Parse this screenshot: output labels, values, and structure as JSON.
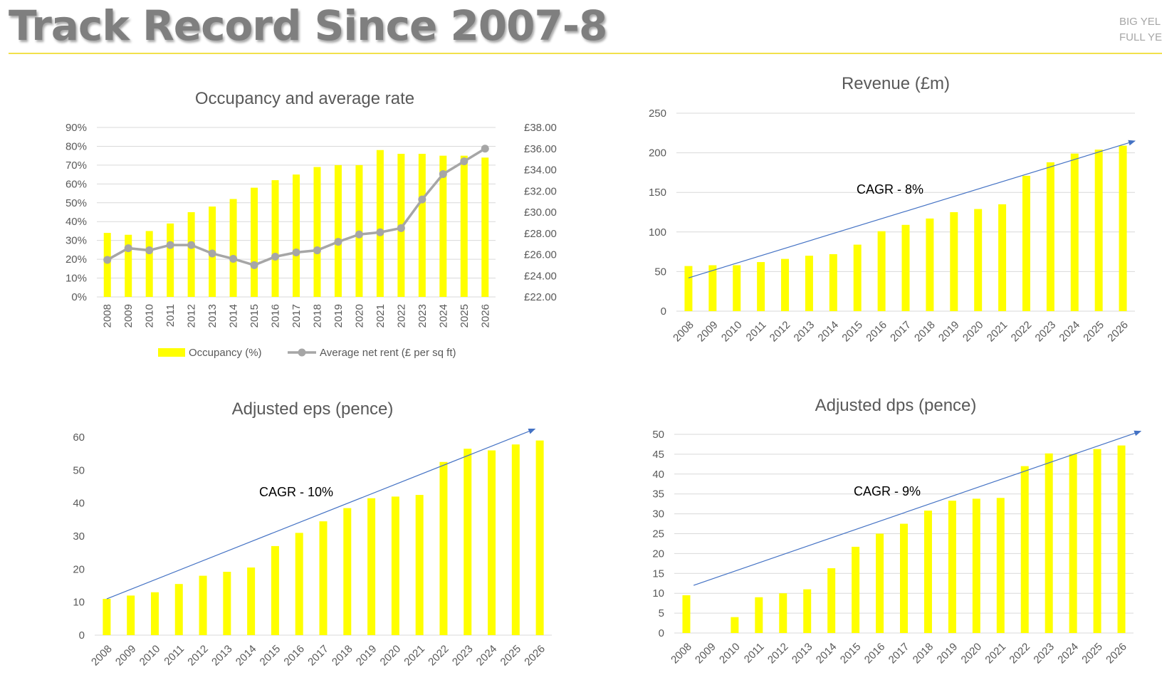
{
  "page": {
    "title": "Track Record Since 2007-8",
    "brand_line_1": "BIG YEL",
    "brand_line_2": "FULL YE"
  },
  "colors": {
    "bar": "#ffff00",
    "line": "#a6a6a6",
    "grid": "#d9d9d9",
    "arrow": "#4472c4",
    "title_rule": "#f2e14c"
  },
  "chart_data": [
    {
      "id": "occupancy",
      "type": "bar+line",
      "title": "Occupancy and average rate",
      "categories": [
        "2008",
        "2009",
        "2010",
        "2011",
        "2012",
        "2013",
        "2014",
        "2015",
        "2016",
        "2017",
        "2018",
        "2019",
        "2020",
        "2021",
        "2022",
        "2023",
        "2024",
        "2025",
        "2026"
      ],
      "series": [
        {
          "name": "Occupancy (%)",
          "type": "bar",
          "axis": "left",
          "values": [
            34,
            33,
            35,
            39,
            45,
            48,
            52,
            58,
            62,
            65,
            69,
            70,
            70,
            78,
            76,
            76,
            75,
            75,
            74
          ]
        },
        {
          "name": "Average net rent (£ per sq ft)",
          "type": "line",
          "axis": "right",
          "values": [
            25.5,
            26.6,
            26.4,
            26.9,
            26.9,
            26.1,
            25.6,
            25.0,
            25.8,
            26.2,
            26.4,
            27.2,
            27.9,
            28.1,
            28.5,
            31.2,
            33.6,
            34.8,
            36.0
          ]
        }
      ],
      "y_left": {
        "min": 0,
        "max": 90,
        "step": 10,
        "ticks": [
          "0%",
          "10%",
          "20%",
          "30%",
          "40%",
          "50%",
          "60%",
          "70%",
          "80%",
          "90%"
        ]
      },
      "y_right": {
        "min": 22,
        "max": 38,
        "step": 2,
        "ticks": [
          "£22.00",
          "£24.00",
          "£26.00",
          "£28.00",
          "£30.00",
          "£32.00",
          "£34.00",
          "£36.00",
          "£38.00"
        ]
      },
      "grid": true,
      "legend_position": "bottom"
    },
    {
      "id": "revenue",
      "type": "bar",
      "title": "Revenue (£m)",
      "categories": [
        "2008",
        "2009",
        "2010",
        "2011",
        "2012",
        "2013",
        "2014",
        "2015",
        "2016",
        "2017",
        "2018",
        "2019",
        "2020",
        "2021",
        "2022",
        "2023",
        "2024",
        "2025",
        "2026"
      ],
      "values": [
        57,
        58,
        58,
        62,
        66,
        70,
        72,
        84,
        101,
        109,
        117,
        125,
        129,
        135,
        171,
        188,
        199,
        204,
        209
      ],
      "y": {
        "min": 0,
        "max": 250,
        "step": 50,
        "ticks": [
          "0",
          "50",
          "100",
          "150",
          "200",
          "250"
        ]
      },
      "annotation": "CAGR - 8%",
      "trend_arrow": {
        "from": [
          0,
          42
        ],
        "to": [
          18.5,
          215
        ]
      },
      "grid": true
    },
    {
      "id": "eps",
      "type": "bar",
      "title": "Adjusted eps (pence)",
      "categories": [
        "2008",
        "2009",
        "2010",
        "2011",
        "2012",
        "2013",
        "2014",
        "2015",
        "2016",
        "2017",
        "2018",
        "2019",
        "2020",
        "2021",
        "2022",
        "2023",
        "2024",
        "2025",
        "2026"
      ],
      "values": [
        11,
        12,
        13,
        15.5,
        18,
        19.2,
        20.5,
        27,
        31,
        34.5,
        38.5,
        41.5,
        42,
        42.5,
        52.5,
        56.5,
        56,
        57.8,
        59
      ],
      "y": {
        "min": 0,
        "max": 60,
        "step": 10,
        "ticks": [
          "0",
          "10",
          "20",
          "30",
          "40",
          "50",
          "60"
        ]
      },
      "annotation": "CAGR - 10%",
      "trend_arrow": {
        "from": [
          0,
          11
        ],
        "to": [
          17.8,
          62.5
        ]
      },
      "grid": false
    },
    {
      "id": "dps",
      "type": "bar",
      "title": "Adjusted dps (pence)",
      "categories": [
        "2008",
        "2009",
        "2010",
        "2011",
        "2012",
        "2013",
        "2014",
        "2015",
        "2016",
        "2017",
        "2018",
        "2019",
        "2020",
        "2021",
        "2022",
        "2023",
        "2024",
        "2025",
        "2026"
      ],
      "values": [
        9.5,
        0,
        4,
        9,
        10,
        11,
        16.3,
        21.7,
        25,
        27.5,
        30.8,
        33.3,
        33.8,
        34,
        42,
        45.2,
        45,
        46.3,
        47.2
      ],
      "y": {
        "min": 0,
        "max": 50,
        "step": 5,
        "ticks": [
          "0",
          "5",
          "10",
          "15",
          "20",
          "25",
          "30",
          "35",
          "40",
          "45",
          "50"
        ]
      },
      "annotation": "CAGR - 9%",
      "trend_arrow": {
        "from": [
          0.3,
          12
        ],
        "to": [
          18.8,
          50.8
        ]
      },
      "grid": true
    }
  ]
}
